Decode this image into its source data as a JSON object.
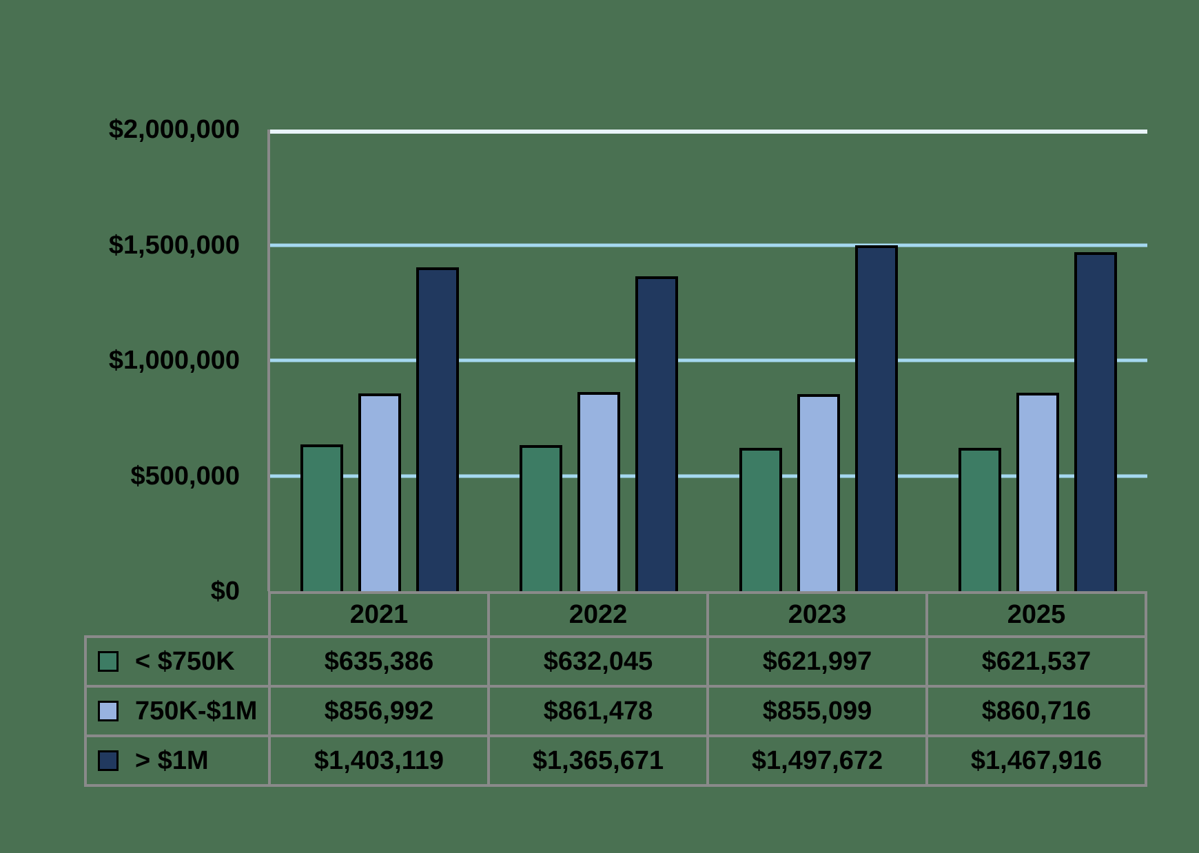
{
  "chart_data": {
    "type": "bar",
    "title": "",
    "categories": [
      "2021",
      "2022",
      "2023",
      "2025"
    ],
    "series": [
      {
        "name": "< $750K",
        "color": "#3d7c64",
        "values": [
          635386,
          632045,
          621997,
          621537
        ]
      },
      {
        "name": "750K-$1M",
        "color": "#98b3e0",
        "values": [
          856992,
          861478,
          855099,
          860716
        ]
      },
      {
        "name": "> $1M",
        "color": "#21395f",
        "values": [
          1403119,
          1365671,
          1497672,
          1467916
        ]
      }
    ],
    "ylabel": "",
    "xlabel": "",
    "ylim": [
      0,
      2000000
    ],
    "y_ticks": [
      "$2,000,000",
      "$1,500,000",
      "$1,000,000",
      "$500,000",
      "$0"
    ],
    "grid": true,
    "legend_position": "table-left",
    "gridline_color": "#a5d8f0",
    "axis_color": "#8a8a8a",
    "background_color": "#4a7152"
  },
  "table": {
    "columns": [
      "2021",
      "2022",
      "2023",
      "2025"
    ],
    "rows": [
      {
        "label": "< $750K",
        "values": [
          "$635,386",
          "$632,045",
          "$621,997",
          "$621,537"
        ]
      },
      {
        "label": "750K-$1M",
        "values": [
          "$856,992",
          "$861,478",
          "$855,099",
          "$860,716"
        ]
      },
      {
        "label": "> $1M",
        "values": [
          "$1,403,119",
          "$1,365,671",
          "$1,497,672",
          "$1,467,916"
        ]
      }
    ]
  }
}
